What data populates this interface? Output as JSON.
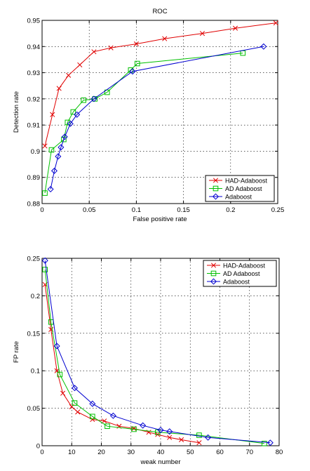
{
  "chart_data": [
    {
      "type": "line",
      "title": "ROC",
      "xlabel": "False positive rate",
      "ylabel": "Detection rate",
      "xlim": [
        0,
        0.25
      ],
      "ylim": [
        0.88,
        0.95
      ],
      "xticks": [
        0,
        0.05,
        0.1,
        0.15,
        0.2,
        0.25
      ],
      "xtick_labels": [
        "0",
        "0.05",
        "0.1",
        "0.15",
        "0.2",
        "0.25"
      ],
      "yticks": [
        0.88,
        0.89,
        0.9,
        0.91,
        0.92,
        0.93,
        0.94,
        0.95
      ],
      "ytick_labels": [
        "0.88",
        "0.89",
        "0.9",
        "0.91",
        "0.92",
        "0.93",
        "0.94",
        "0.95"
      ],
      "grid": true,
      "legend_position": "bottom-right",
      "series": [
        {
          "name": "HAD-Adaboost",
          "color": "#e00000",
          "marker": "x",
          "points": [
            [
              0.003,
              0.902
            ],
            [
              0.011,
              0.914
            ],
            [
              0.018,
              0.924
            ],
            [
              0.028,
              0.929
            ],
            [
              0.04,
              0.933
            ],
            [
              0.055,
              0.938
            ],
            [
              0.073,
              0.9395
            ],
            [
              0.1,
              0.941
            ],
            [
              0.13,
              0.943
            ],
            [
              0.17,
              0.945
            ],
            [
              0.205,
              0.947
            ],
            [
              0.248,
              0.949
            ]
          ]
        },
        {
          "name": "AD Adaboost",
          "color": "#00c000",
          "marker": "square",
          "points": [
            [
              0.003,
              0.884
            ],
            [
              0.01,
              0.9005
            ],
            [
              0.023,
              0.9045
            ],
            [
              0.027,
              0.911
            ],
            [
              0.033,
              0.915
            ],
            [
              0.044,
              0.9195
            ],
            [
              0.056,
              0.92
            ],
            [
              0.069,
              0.9225
            ],
            [
              0.094,
              0.931
            ],
            [
              0.101,
              0.9335
            ],
            [
              0.213,
              0.9375
            ]
          ]
        },
        {
          "name": "Adaboost",
          "color": "#0000d0",
          "marker": "diamond",
          "points": [
            [
              0.009,
              0.8855
            ],
            [
              0.013,
              0.8925
            ],
            [
              0.017,
              0.898
            ],
            [
              0.02,
              0.9015
            ],
            [
              0.024,
              0.9055
            ],
            [
              0.03,
              0.9105
            ],
            [
              0.037,
              0.914
            ],
            [
              0.055,
              0.92
            ],
            [
              0.096,
              0.9305
            ],
            [
              0.235,
              0.94
            ]
          ]
        }
      ]
    },
    {
      "type": "line",
      "title": "",
      "xlabel": "weak number",
      "ylabel": "FP rate",
      "xlim": [
        0,
        80
      ],
      "ylim": [
        0,
        0.25
      ],
      "xticks": [
        0,
        10,
        20,
        30,
        40,
        50,
        60,
        70,
        80
      ],
      "xtick_labels": [
        "0",
        "10",
        "20",
        "30",
        "40",
        "50",
        "60",
        "70",
        "80"
      ],
      "yticks": [
        0,
        0.05,
        0.1,
        0.15,
        0.2,
        0.25
      ],
      "ytick_labels": [
        "0",
        "0.05",
        "0.1",
        "0.15",
        "0.2",
        "0.25"
      ],
      "grid": true,
      "legend_position": "top-right",
      "series": [
        {
          "name": "HAD-Adaboost",
          "color": "#e00000",
          "marker": "x",
          "points": [
            [
              1,
              0.215
            ],
            [
              3,
              0.155
            ],
            [
              5,
              0.1
            ],
            [
              7,
              0.07
            ],
            [
              10,
              0.052
            ],
            [
              12,
              0.045
            ],
            [
              17,
              0.035
            ],
            [
              21,
              0.033
            ],
            [
              26,
              0.026
            ],
            [
              31,
              0.023
            ],
            [
              36,
              0.018
            ],
            [
              39,
              0.015
            ],
            [
              43,
              0.011
            ],
            [
              47,
              0.008
            ],
            [
              53,
              0.004
            ]
          ]
        },
        {
          "name": "AD Adaboost",
          "color": "#00c000",
          "marker": "square",
          "points": [
            [
              1,
              0.235
            ],
            [
              3,
              0.165
            ],
            [
              6,
              0.095
            ],
            [
              11,
              0.057
            ],
            [
              17,
              0.039
            ],
            [
              22,
              0.026
            ],
            [
              31,
              0.022
            ],
            [
              39,
              0.018
            ],
            [
              53,
              0.014
            ],
            [
              75,
              0.003
            ]
          ]
        },
        {
          "name": "Adaboost",
          "color": "#0000d0",
          "marker": "diamond",
          "points": [
            [
              1,
              0.247
            ],
            [
              5,
              0.133
            ],
            [
              11,
              0.077
            ],
            [
              17,
              0.056
            ],
            [
              24,
              0.04
            ],
            [
              34,
              0.027
            ],
            [
              40,
              0.021
            ],
            [
              43,
              0.019
            ],
            [
              56,
              0.011
            ],
            [
              77,
              0.004
            ]
          ]
        }
      ]
    }
  ]
}
